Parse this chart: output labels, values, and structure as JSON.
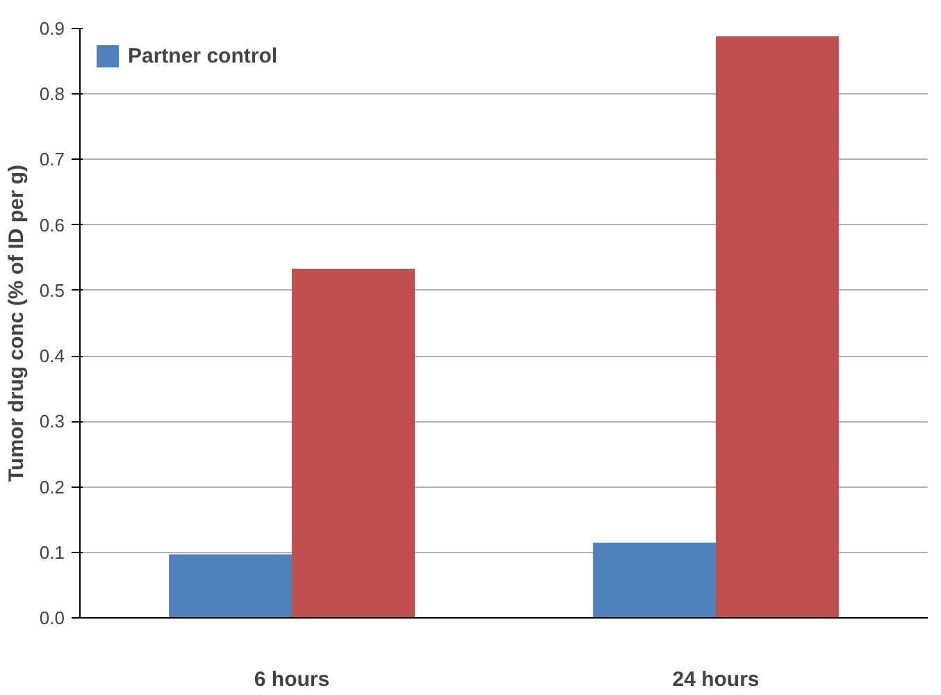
{
  "chart_data": {
    "type": "bar",
    "ylabel": "Tumor drug conc (% of ID per g)",
    "categories": [
      "6 hours",
      "24 hours"
    ],
    "series": [
      {
        "name": "Partner control",
        "color": "#4f81bd",
        "values": [
          0.097,
          0.115
        ]
      },
      {
        "color": "#c0504d",
        "values": [
          0.533,
          0.888
        ]
      }
    ],
    "ylim": [
      0,
      0.9
    ],
    "yticks": [
      {
        "value": 0,
        "label": "0.0"
      },
      {
        "value": 0.1,
        "label": "0.1"
      },
      {
        "value": 0.2,
        "label": "0.2"
      },
      {
        "value": 0.3,
        "label": "0.3"
      },
      {
        "value": 0.4,
        "label": "0.4"
      },
      {
        "value": 0.5,
        "label": "0.5"
      },
      {
        "value": 0.6,
        "label": "0.6"
      },
      {
        "value": 0.7,
        "label": "0.7"
      },
      {
        "value": 0.8,
        "label": "0.8"
      },
      {
        "value": 0.9,
        "label": "0.9"
      }
    ],
    "grid": "y",
    "legend": "top left"
  }
}
